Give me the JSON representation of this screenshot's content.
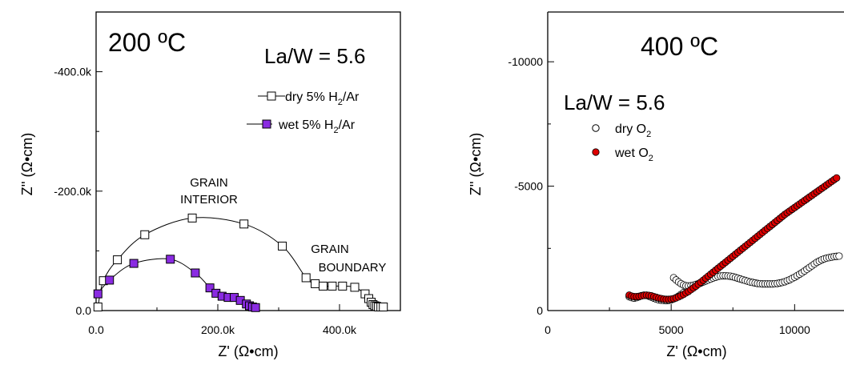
{
  "chart_data": [
    {
      "type": "scatter",
      "temperature": "200 ºC",
      "composition": "La/W = 5.6",
      "xlabel": "Z' (Ω•cm)",
      "ylabel": "Z'' (Ω•cm)",
      "xlim": [
        0,
        500000
      ],
      "ylim": [
        0,
        500000
      ],
      "y_inverted_sign": true,
      "xticks": [
        0,
        200000,
        400000
      ],
      "xtick_labels": [
        "0.0",
        "200.0k",
        "400.0k"
      ],
      "yticks": [
        0,
        200000,
        400000
      ],
      "ytick_labels": [
        "0.0",
        "-200.0k",
        "-400.0k"
      ],
      "legend_position": "right",
      "annotations": [
        {
          "lines": [
            "GRAIN",
            "INTERIOR"
          ],
          "x": 192000,
          "y": 182000
        },
        {
          "lines": [
            "GRAIN",
            "BOUNDARY"
          ],
          "x": 405000,
          "y": 92000
        }
      ],
      "series": [
        {
          "name": "dry 5% H2/Ar",
          "legend_main": "dry 5% H",
          "legend_sub": "2",
          "legend_tail": "/Ar",
          "marker": "open-square",
          "color": "#000000",
          "fill": "#ffffff",
          "x": [
            3000,
            12000,
            35000,
            80000,
            158000,
            243000,
            306000,
            345000,
            360000,
            373000,
            388000,
            405000,
            425000,
            442000,
            448000,
            452000,
            455000,
            458000,
            461000,
            464000,
            468000,
            472000
          ],
          "y": [
            6000,
            50000,
            85000,
            127000,
            155000,
            145000,
            108000,
            55000,
            45000,
            41000,
            41000,
            41000,
            39000,
            28000,
            20000,
            14000,
            10000,
            8000,
            7000,
            6000,
            6000,
            6000
          ]
        },
        {
          "name": "wet 5% H2/Ar",
          "legend_main": "wet 5% H",
          "legend_sub": "2",
          "legend_tail": "/Ar",
          "marker": "filled-square",
          "color": "#000000",
          "fill": "#8a2be2",
          "x": [
            3000,
            22000,
            62000,
            122000,
            163000,
            187000,
            197000,
            207000,
            217000,
            227000,
            237000,
            247000,
            252000,
            257000,
            262000
          ],
          "y": [
            28000,
            51000,
            79000,
            86000,
            63000,
            38000,
            29000,
            24000,
            22000,
            22000,
            17000,
            11000,
            8000,
            6000,
            5000
          ]
        }
      ]
    },
    {
      "type": "scatter",
      "temperature": "400 ºC",
      "composition": "La/W = 5.6",
      "xlabel": "Z' (Ω•cm)",
      "ylabel": "Z'' (Ω•cm)",
      "xlim": [
        0,
        12000
      ],
      "ylim": [
        0,
        12000
      ],
      "y_inverted_sign": true,
      "xticks": [
        0,
        5000,
        10000
      ],
      "xtick_labels": [
        "0",
        "5000",
        "10000"
      ],
      "yticks": [
        0,
        5000,
        10000
      ],
      "ytick_labels": [
        "0",
        "-5000",
        "-10000"
      ],
      "legend_position": "top-left",
      "series": [
        {
          "name": "dry O2",
          "legend_main": "dry O",
          "legend_sub": "2",
          "legend_tail": "",
          "marker": "open-circle",
          "color": "#000000",
          "fill": "#ffffff",
          "x": [
            3300,
            3400,
            3500,
            3600,
            3700,
            3800,
            3900,
            4000,
            4100,
            4200,
            4300,
            4400,
            4500,
            4600,
            4700,
            4800,
            4900,
            5000,
            5100,
            5200,
            5300,
            5400,
            5500,
            5100,
            5200,
            5300,
            5400,
            5500,
            5600,
            5700,
            5800,
            5900,
            6000,
            6100,
            6200,
            6300,
            6400,
            6500,
            6600,
            6700,
            6800,
            6900,
            7000,
            7100,
            7200,
            7300,
            7400,
            7500,
            7600,
            7700,
            7800,
            7900,
            8000,
            8100,
            8200,
            8300,
            8400,
            8500,
            8600,
            8700,
            8800,
            8900,
            9000,
            9100,
            9200,
            9300,
            9400,
            9500,
            9600,
            9700,
            9800,
            9900,
            10000,
            10100,
            10200,
            10300,
            10400,
            10500,
            10600,
            10700,
            10800,
            10900,
            11000,
            11100,
            11200,
            11300,
            11400,
            11500,
            11600,
            11700,
            11800
          ],
          "y": [
            560,
            520,
            500,
            520,
            560,
            600,
            620,
            610,
            580,
            540,
            500,
            460,
            430,
            420,
            410,
            400,
            410,
            430,
            470,
            520,
            580,
            650,
            720,
            1320,
            1230,
            1150,
            1080,
            1030,
            1000,
            990,
            1000,
            1020,
            1050,
            1080,
            1110,
            1150,
            1190,
            1230,
            1270,
            1310,
            1340,
            1370,
            1390,
            1400,
            1400,
            1390,
            1380,
            1360,
            1330,
            1300,
            1270,
            1240,
            1210,
            1180,
            1150,
            1130,
            1110,
            1090,
            1080,
            1070,
            1070,
            1070,
            1070,
            1070,
            1080,
            1090,
            1110,
            1130,
            1160,
            1200,
            1240,
            1290,
            1340,
            1400,
            1460,
            1520,
            1590,
            1660,
            1730,
            1800,
            1870,
            1940,
            1990,
            2040,
            2080,
            2110,
            2130,
            2150,
            2170,
            2180,
            2190
          ]
        },
        {
          "name": "wet O2",
          "legend_main": "wet O",
          "legend_sub": "2",
          "legend_tail": "",
          "marker": "filled-circle",
          "color": "#000000",
          "fill": "#dd0000",
          "x": [
            3300,
            3400,
            3500,
            3600,
            3700,
            3800,
            3900,
            4000,
            4100,
            4200,
            4300,
            4400,
            4500,
            4600,
            4700,
            4800,
            4900,
            5000,
            5100,
            5200,
            5300,
            5400,
            5500,
            5600,
            5700,
            5800,
            5900,
            6000,
            6100,
            6200,
            6300,
            6400,
            6500,
            6600,
            6700,
            6800,
            6900,
            7000,
            7100,
            7200,
            7300,
            7400,
            7500,
            7600,
            7700,
            7800,
            7900,
            8000,
            8100,
            8200,
            8300,
            8400,
            8500,
            8600,
            8700,
            8800,
            8900,
            9000,
            9100,
            9200,
            9300,
            9400,
            9500,
            9600,
            9700,
            9800,
            9900,
            10000,
            10100,
            10200,
            10300,
            10400,
            10500,
            10600,
            10700,
            10800,
            10900,
            11000,
            11100,
            11200,
            11300,
            11400,
            11500,
            11600,
            11700
          ],
          "y": [
            620,
            580,
            560,
            560,
            570,
            590,
            610,
            620,
            610,
            590,
            560,
            530,
            500,
            480,
            460,
            450,
            450,
            460,
            480,
            510,
            550,
            600,
            650,
            710,
            770,
            840,
            910,
            980,
            1060,
            1140,
            1220,
            1300,
            1380,
            1460,
            1540,
            1620,
            1700,
            1780,
            1860,
            1940,
            2020,
            2100,
            2180,
            2260,
            2340,
            2420,
            2500,
            2580,
            2660,
            2740,
            2820,
            2900,
            2980,
            3060,
            3140,
            3220,
            3300,
            3380,
            3460,
            3540,
            3620,
            3700,
            3780,
            3860,
            3930,
            4000,
            4070,
            4140,
            4210,
            4280,
            4350,
            4420,
            4490,
            4560,
            4630,
            4700,
            4770,
            4840,
            4910,
            4980,
            5050,
            5120,
            5190,
            5260,
            5330
          ]
        }
      ]
    }
  ]
}
